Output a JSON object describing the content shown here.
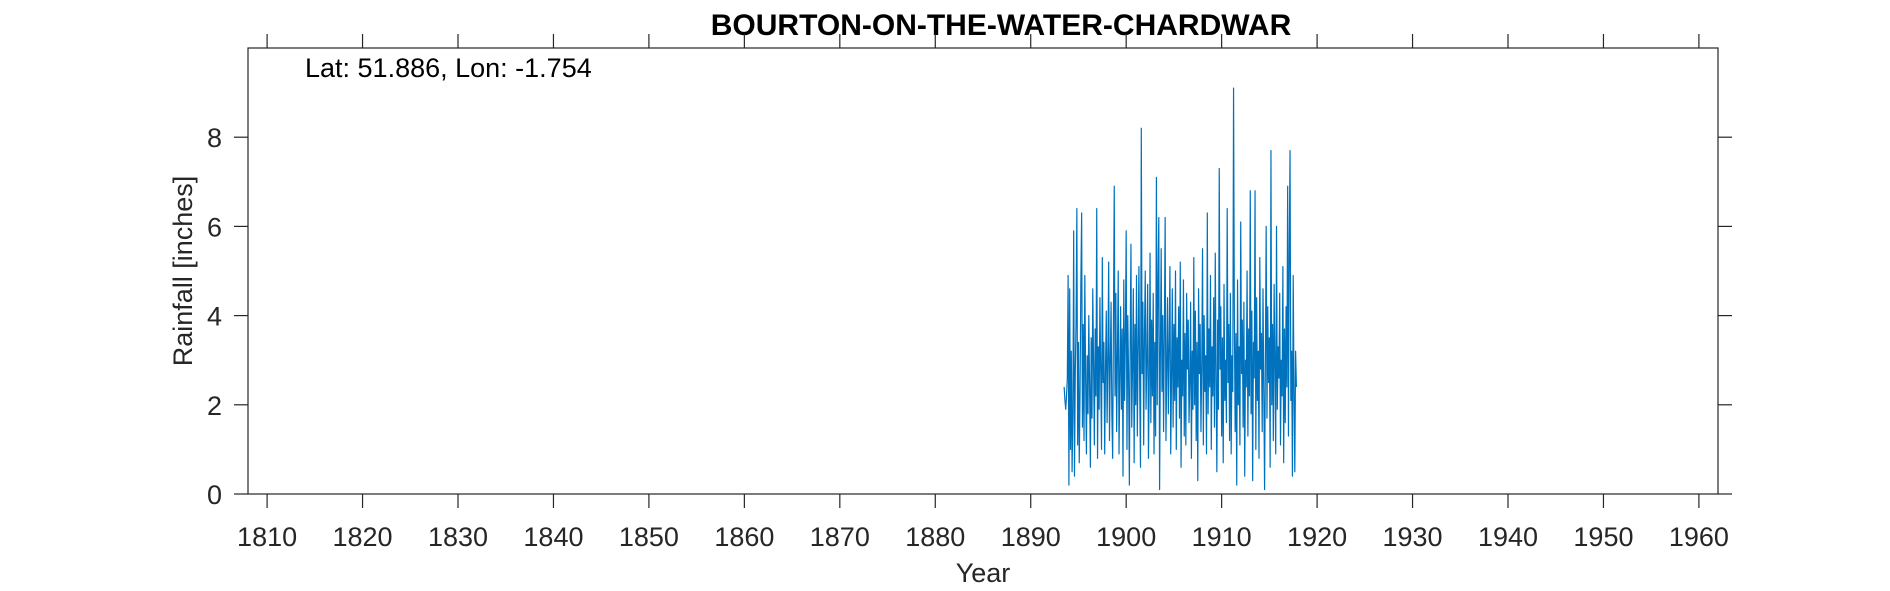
{
  "chart_data": {
    "type": "line",
    "title": "BOURTON-ON-THE-WATER-CHARDWAR",
    "annotation": "Lat: 51.886, Lon: -1.754",
    "xlabel": "Year",
    "ylabel": "Rainfall [inches]",
    "xlim": [
      1808,
      1962
    ],
    "ylim": [
      0,
      10
    ],
    "xticks": [
      1810,
      1820,
      1830,
      1840,
      1850,
      1860,
      1870,
      1880,
      1890,
      1900,
      1910,
      1920,
      1930,
      1940,
      1950,
      1960
    ],
    "yticks": [
      0,
      2,
      4,
      6,
      8
    ],
    "grid": false,
    "series": [
      {
        "color": "#0072BD",
        "x_start": 1893.5,
        "step_years": 0.08333,
        "values": [
          2.4,
          2.1,
          1.9,
          2.2,
          2.6,
          4.9,
          0.2,
          4.6,
          1.0,
          3.2,
          0.5,
          1.8,
          5.9,
          0.4,
          2.7,
          3.9,
          6.4,
          1.1,
          3.4,
          0.7,
          2.3,
          4.7,
          6.3,
          1.5,
          3.8,
          1.2,
          4.9,
          2.6,
          0.9,
          3.1,
          1.8,
          4.0,
          2.4,
          0.6,
          3.5,
          1.7,
          4.6,
          2.9,
          1.1,
          3.7,
          2.2,
          6.4,
          0.8,
          3.3,
          1.9,
          4.4,
          2.7,
          1.0,
          5.3,
          2.5,
          3.4,
          0.9,
          2.8,
          4.1,
          1.6,
          3.0,
          5.2,
          1.2,
          2.9,
          4.3,
          1.8,
          0.8,
          3.9,
          6.9,
          2.2,
          4.5,
          1.4,
          3.1,
          5.0,
          0.9,
          2.6,
          4.2,
          1.9,
          3.7,
          0.4,
          4.8,
          2.1,
          3.5,
          5.9,
          1.0,
          4.0,
          2.7,
          0.2,
          3.3,
          5.6,
          1.5,
          2.9,
          4.6,
          0.7,
          3.8,
          2.0,
          4.9,
          1.3,
          3.2,
          5.1,
          2.4,
          0.6,
          8.2,
          2.7,
          4.3,
          1.1,
          3.6,
          5.0,
          1.9,
          3.0,
          4.7,
          0.8,
          2.5,
          5.4,
          1.6,
          3.9,
          2.2,
          4.5,
          0.9,
          3.4,
          1.3,
          7.1,
          2.0,
          4.8,
          6.2,
          0.1,
          3.1,
          5.5,
          2.3,
          4.0,
          1.4,
          3.7,
          6.2,
          1.2,
          2.8,
          4.4,
          1.8,
          3.3,
          5.1,
          0.9,
          2.6,
          4.6,
          1.5,
          3.8,
          2.1,
          5.0,
          1.0,
          3.5,
          2.4,
          4.2,
          1.7,
          5.2,
          0.6,
          3.0,
          2.2,
          4.8,
          1.3,
          3.6,
          1.1,
          4.5,
          2.8,
          3.9,
          1.6,
          2.5,
          4.3,
          0.8,
          3.2,
          1.9,
          5.3,
          2.0,
          4.1,
          1.2,
          3.4,
          0.3,
          4.6,
          2.7,
          3.8,
          1.4,
          2.9,
          5.5,
          1.1,
          4.0,
          2.3,
          3.1,
          0.9,
          6.3,
          1.8,
          3.7,
          2.4,
          4.9,
          1.0,
          3.3,
          2.2,
          4.4,
          1.5,
          5.4,
          2.6,
          0.5,
          3.9,
          1.9,
          7.3,
          2.8,
          4.2,
          1.3,
          3.5,
          0.7,
          4.7,
          2.1,
          3.0,
          1.6,
          6.4,
          2.5,
          3.8,
          1.2,
          4.5,
          0.9,
          3.1,
          2.3,
          9.1,
          4.0,
          1.4,
          3.6,
          0.2,
          4.8,
          2.0,
          3.3,
          1.1,
          6.1,
          2.7,
          3.9,
          1.5,
          4.3,
          0.4,
          3.0,
          2.4,
          5.0,
          1.3,
          3.7,
          2.2,
          6.8,
          1.8,
          4.1,
          0.3,
          3.4,
          2.6,
          6.8,
          1.0,
          4.4,
          2.1,
          3.2,
          0.8,
          5.3,
          2.8,
          3.6,
          1.4,
          4.6,
          2.3,
          0.1,
          3.0,
          6.0,
          1.7,
          4.2,
          2.5,
          3.5,
          0.6,
          7.7,
          2.0,
          3.8,
          1.2,
          4.7,
          2.9,
          0.9,
          6.0,
          1.9,
          3.3,
          2.6,
          4.5,
          1.1,
          3.0,
          2.2,
          5.1,
          0.7,
          3.7,
          1.6,
          4.2,
          2.4,
          6.9,
          1.3,
          5.5,
          7.7,
          2.1,
          3.2,
          0.4,
          4.9,
          2.3,
          0.5,
          3.2,
          2.4
        ]
      }
    ]
  }
}
